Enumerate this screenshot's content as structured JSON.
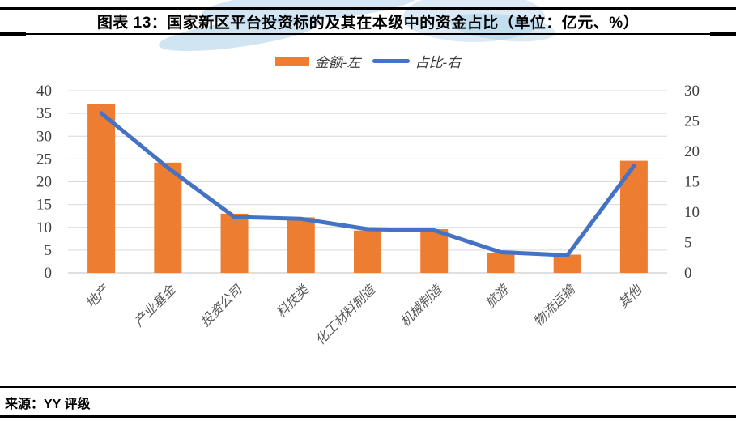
{
  "header": {
    "title": "图表 13：国家新区平台投资标的及其在本级中的资金占比（单位：亿元、%）"
  },
  "legend": {
    "bar_label": "金额-左",
    "line_label": "占比-右"
  },
  "chart_data": {
    "type": "bar",
    "combo": "bar+line dual axis",
    "title": "国家新区平台投资标的及其在本级中的资金占比",
    "units": "亿元、%",
    "categories": [
      "地产",
      "产业基金",
      "投资公司",
      "科技类",
      "化工材料制造",
      "机械制造",
      "旅游",
      "物流运输",
      "其他"
    ],
    "series": [
      {
        "name": "金额-左",
        "type": "bar",
        "axis": "left",
        "values": [
          37,
          24.2,
          13,
          12.2,
          9.3,
          9.6,
          4.4,
          4.0,
          24.6
        ]
      },
      {
        "name": "占比-右",
        "type": "line",
        "axis": "right",
        "values": [
          26.3,
          17.3,
          9.2,
          8.9,
          7.2,
          7.0,
          3.4,
          2.9,
          17.6
        ]
      }
    ],
    "left_axis": {
      "min": 0,
      "max": 40,
      "step": 5,
      "ticks": [
        "0",
        "5",
        "10",
        "15",
        "20",
        "25",
        "30",
        "35",
        "40"
      ]
    },
    "right_axis": {
      "min": 0,
      "max": 30,
      "step": 5,
      "ticks": [
        "0",
        "5",
        "10",
        "15",
        "20",
        "25",
        "30"
      ]
    },
    "grid": true,
    "legend_position": "top",
    "category_label_rotation_deg": -45
  },
  "colors": {
    "bar": "#ED7D31",
    "line": "#4472C4",
    "gridline": "#D9D9D9",
    "baseline": "#BFBFBF",
    "axis_text": "#404040",
    "category_text": "#595959",
    "watermark": "#B0D0EB"
  },
  "footer": {
    "source": "来源：YY 评级"
  }
}
